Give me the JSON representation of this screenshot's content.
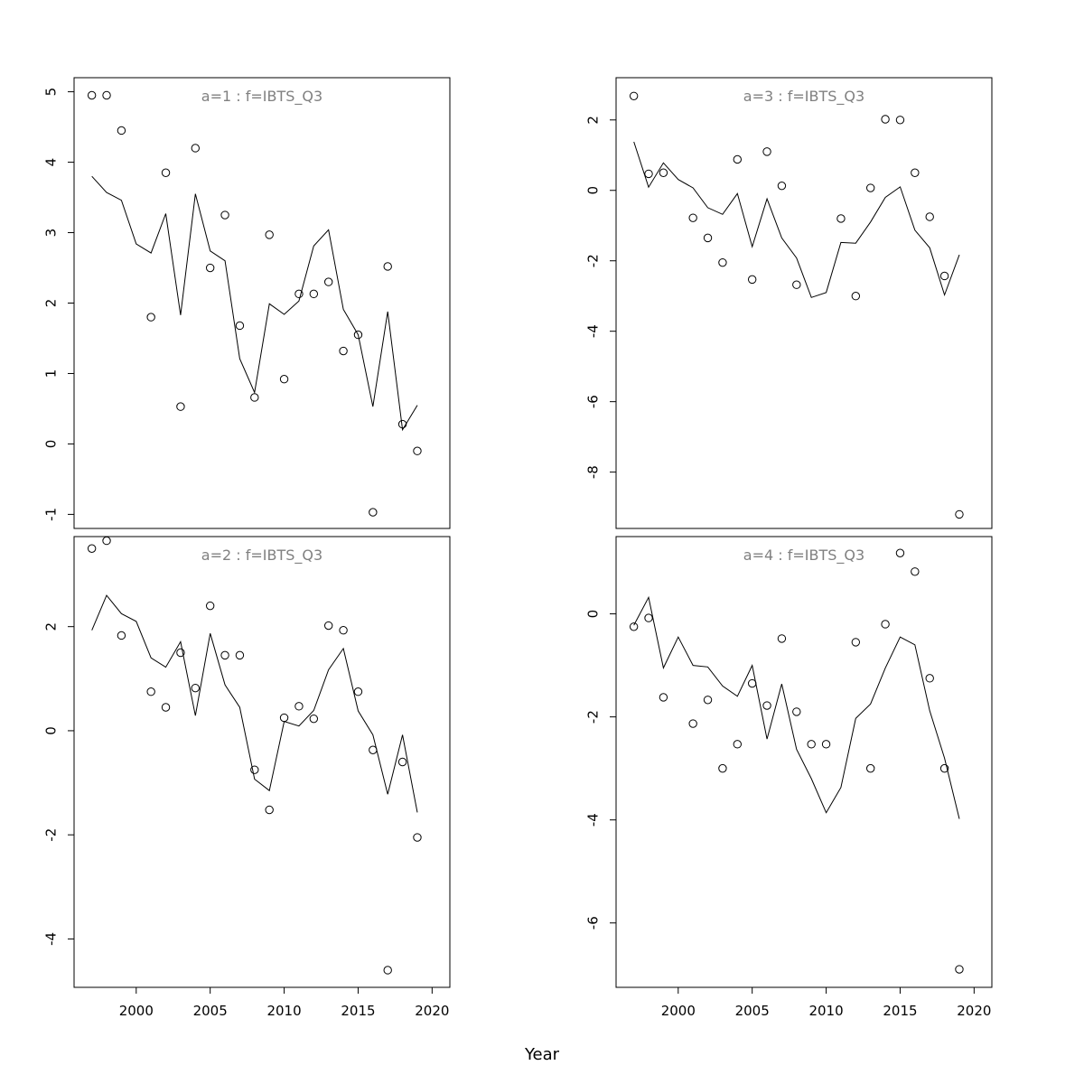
{
  "chart_data": {
    "type": "scatter",
    "xlabel": "Year",
    "x_ticks": [
      2000,
      2005,
      2010,
      2015,
      2020
    ],
    "panels": [
      {
        "title": "a=1  :  f=IBTS_Q3",
        "xlim": [
          1995.8,
          2021.2
        ],
        "ylim": [
          -1.2,
          5.2
        ],
        "y_ticks": [
          -1,
          0,
          1,
          2,
          3,
          4,
          5
        ],
        "x_axis_shown": false,
        "series": [
          {
            "type": "points",
            "x": [
              1997,
              1998,
              1999,
              2001,
              2002,
              2003,
              2004,
              2005,
              2006,
              2007,
              2008,
              2009,
              2010,
              2011,
              2012,
              2013,
              2014,
              2015,
              2016,
              2017,
              2018,
              2019
            ],
            "y": [
              4.95,
              4.95,
              4.45,
              1.8,
              3.85,
              0.53,
              4.2,
              2.5,
              3.25,
              1.68,
              0.66,
              2.97,
              0.92,
              2.13,
              2.13,
              2.3,
              1.32,
              1.55,
              -0.97,
              2.52,
              0.28,
              -0.1
            ]
          },
          {
            "type": "line",
            "x": [
              1997,
              1998,
              1999,
              2000,
              2001,
              2002,
              2003,
              2004,
              2005,
              2006,
              2007,
              2008,
              2009,
              2010,
              2011,
              2012,
              2013,
              2014,
              2015,
              2016,
              2017,
              2018,
              2019
            ],
            "y": [
              3.8,
              3.57,
              3.46,
              2.84,
              2.71,
              3.27,
              1.83,
              3.55,
              2.74,
              2.6,
              1.21,
              0.73,
              1.99,
              1.84,
              2.03,
              2.81,
              3.04,
              1.91,
              1.55,
              0.53,
              1.88,
              0.2,
              0.55
            ]
          }
        ]
      },
      {
        "title": "a=3  :  f=IBTS_Q3",
        "xlim": [
          1995.8,
          2021.2
        ],
        "ylim": [
          -9.6,
          3.2
        ],
        "y_ticks": [
          -8,
          -6,
          -4,
          -2,
          0,
          2
        ],
        "x_axis_shown": false,
        "series": [
          {
            "type": "points",
            "x": [
              1997,
              1998,
              1999,
              2001,
              2002,
              2003,
              2004,
              2005,
              2006,
              2007,
              2008,
              2011,
              2012,
              2013,
              2014,
              2015,
              2016,
              2017,
              2018,
              2019
            ],
            "y": [
              2.68,
              0.47,
              0.5,
              -0.78,
              -1.35,
              -2.05,
              0.88,
              -2.53,
              1.1,
              0.13,
              -2.68,
              -0.8,
              -3.0,
              0.07,
              2.02,
              2.0,
              0.5,
              -0.75,
              -2.43,
              -9.2
            ]
          },
          {
            "type": "line",
            "x": [
              1997,
              1998,
              1999,
              2000,
              2001,
              2002,
              2003,
              2004,
              2005,
              2006,
              2007,
              2008,
              2009,
              2010,
              2011,
              2012,
              2013,
              2014,
              2015,
              2016,
              2017,
              2018,
              2019
            ],
            "y": [
              1.38,
              0.09,
              0.78,
              0.31,
              0.07,
              -0.49,
              -0.68,
              -0.09,
              -1.6,
              -0.24,
              -1.35,
              -1.92,
              -3.04,
              -2.9,
              -1.48,
              -1.5,
              -0.9,
              -0.2,
              0.1,
              -1.13,
              -1.63,
              -2.97,
              -1.83
            ]
          }
        ]
      },
      {
        "title": "a=2  :  f=IBTS_Q3",
        "xlim": [
          1995.8,
          2021.2
        ],
        "ylim": [
          -4.93,
          3.73
        ],
        "y_ticks": [
          -4,
          -2,
          0,
          2
        ],
        "x_axis_shown": true,
        "series": [
          {
            "type": "points",
            "x": [
              1997,
              1998,
              1999,
              2001,
              2002,
              2003,
              2004,
              2005,
              2006,
              2007,
              2008,
              2009,
              2010,
              2011,
              2012,
              2013,
              2014,
              2015,
              2016,
              2017,
              2018,
              2019
            ],
            "y": [
              3.5,
              3.65,
              1.83,
              0.75,
              0.45,
              1.5,
              0.82,
              2.4,
              1.45,
              1.45,
              -0.75,
              -1.52,
              0.25,
              0.47,
              0.23,
              2.02,
              1.93,
              0.75,
              -0.37,
              -4.6,
              -0.6,
              -2.05
            ]
          },
          {
            "type": "line",
            "x": [
              1997,
              1998,
              1999,
              2000,
              2001,
              2002,
              2003,
              2004,
              2005,
              2006,
              2007,
              2008,
              2009,
              2010,
              2011,
              2012,
              2013,
              2014,
              2015,
              2016,
              2017,
              2018,
              2019
            ],
            "y": [
              1.93,
              2.6,
              2.25,
              2.1,
              1.4,
              1.22,
              1.71,
              0.29,
              1.87,
              0.88,
              0.45,
              -0.93,
              -1.15,
              0.18,
              0.09,
              0.39,
              1.17,
              1.58,
              0.38,
              -0.08,
              -1.22,
              -0.08,
              -1.57
            ]
          }
        ]
      },
      {
        "title": "a=4  :  f=IBTS_Q3",
        "xlim": [
          1995.8,
          2021.2
        ],
        "ylim": [
          -7.25,
          1.5
        ],
        "y_ticks": [
          -6,
          -4,
          -2,
          0
        ],
        "x_axis_shown": true,
        "series": [
          {
            "type": "points",
            "x": [
              1997,
              1998,
              1999,
              2001,
              2002,
              2003,
              2004,
              2005,
              2006,
              2007,
              2008,
              2009,
              2010,
              2012,
              2013,
              2014,
              2015,
              2016,
              2017,
              2018,
              2019
            ],
            "y": [
              -0.25,
              -0.08,
              -1.62,
              -2.13,
              -1.67,
              -3.0,
              -2.53,
              -1.35,
              -1.78,
              -0.48,
              -1.9,
              -2.53,
              -2.53,
              -0.55,
              -3.0,
              -0.2,
              1.18,
              0.82,
              -1.25,
              -3.0,
              -6.9
            ]
          },
          {
            "type": "line",
            "x": [
              1997,
              1998,
              1999,
              2000,
              2001,
              2002,
              2003,
              2004,
              2005,
              2006,
              2007,
              2008,
              2009,
              2010,
              2011,
              2012,
              2013,
              2014,
              2015,
              2016,
              2017,
              2018,
              2019
            ],
            "y": [
              -0.22,
              0.32,
              -1.05,
              -0.45,
              -1.0,
              -1.03,
              -1.4,
              -1.6,
              -1.0,
              -2.43,
              -1.36,
              -2.63,
              -3.2,
              -3.86,
              -3.37,
              -2.03,
              -1.75,
              -1.05,
              -0.45,
              -0.6,
              -1.88,
              -2.8,
              -3.98
            ]
          }
        ]
      }
    ]
  }
}
